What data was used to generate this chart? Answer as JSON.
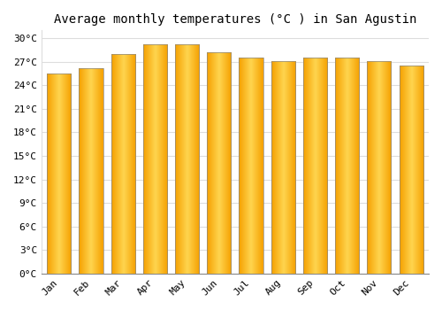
{
  "title": "Average monthly temperatures (°C ) in San Agustin",
  "months": [
    "Jan",
    "Feb",
    "Mar",
    "Apr",
    "May",
    "Jun",
    "Jul",
    "Aug",
    "Sep",
    "Oct",
    "Nov",
    "Dec"
  ],
  "values": [
    25.5,
    26.2,
    28.0,
    29.2,
    29.2,
    28.2,
    27.5,
    27.1,
    27.5,
    27.5,
    27.1,
    26.5
  ],
  "bar_color_center": "#FFD54F",
  "bar_color_edge": "#F5A000",
  "bar_edge_color": "#888888",
  "background_color": "#FFFFFF",
  "grid_color": "#DDDDDD",
  "ytick_step": 3,
  "ylim": [
    0,
    31
  ],
  "title_fontsize": 10,
  "tick_fontsize": 8,
  "font_family": "monospace",
  "bar_width": 0.75
}
